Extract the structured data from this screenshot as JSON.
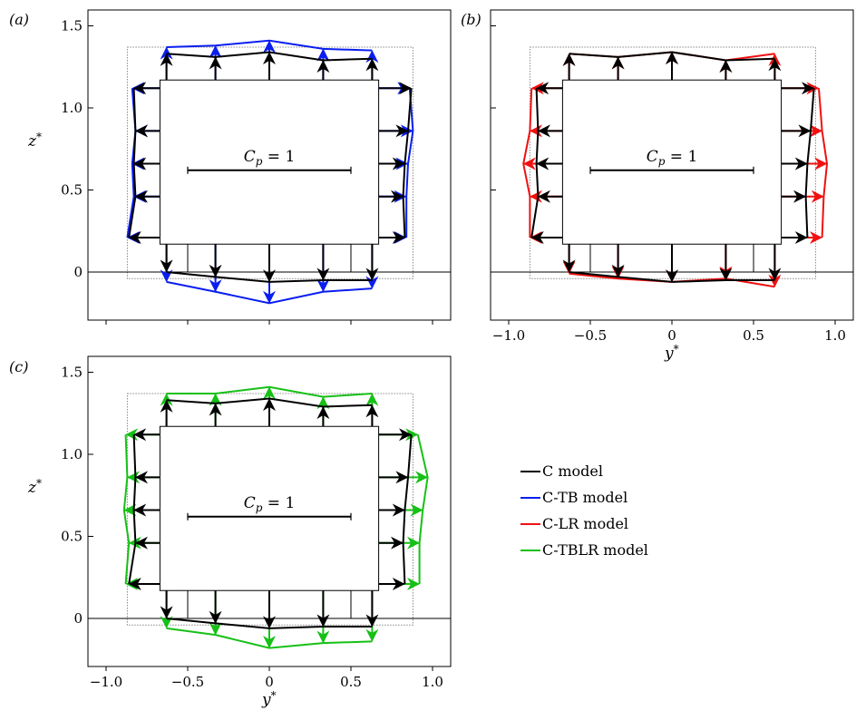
{
  "chart_data": {
    "type": "line",
    "description_panels": [
      "(a)",
      "(b)",
      "(c)"
    ],
    "shared": {
      "xlabel": "y*",
      "ylabel": "z*",
      "xlim": [
        -1.0,
        1.05
      ],
      "ylim": [
        -0.3,
        1.55
      ],
      "xticks": [
        -1.0,
        -0.5,
        0,
        0.5,
        1.0
      ],
      "xtick_labels": [
        "−1.0",
        "−0.5",
        "0",
        "0.5",
        "1.0"
      ],
      "yticks": [
        0,
        0.5,
        1.0,
        1.5
      ],
      "ytick_labels": [
        "0",
        "0.5",
        "1.0",
        "1.5"
      ],
      "body": {
        "y_min": -0.67,
        "y_max": 0.67,
        "z_min": 0.17,
        "z_max": 1.17
      },
      "scale_bar": {
        "label": "Cp = 1",
        "label_main": "C",
        "label_sub": "p",
        "label_rest": " = 1",
        "y_from": -0.5,
        "y_to": 0.5,
        "z": 0.62
      },
      "ground_z": 0,
      "dotted_box": {
        "y_min": -0.87,
        "y_max": 0.88,
        "z_min": -0.04,
        "z_max": 1.37
      },
      "top_y": [
        -0.63,
        -0.33,
        0.0,
        0.33,
        0.63
      ],
      "bottom_y": [
        -0.63,
        -0.33,
        0.0,
        0.33,
        0.63
      ],
      "side_z": [
        0.21,
        0.46,
        0.66,
        0.86,
        1.12
      ],
      "bottom_stub_y": [
        -0.5,
        -0.33,
        0.33,
        0.5
      ]
    },
    "series": [
      {
        "name": "C model",
        "color": "#000000",
        "top": [
          1.33,
          1.31,
          1.34,
          1.29,
          1.3
        ],
        "bottom": [
          0.0,
          -0.03,
          -0.06,
          -0.05,
          -0.05
        ],
        "left": [
          -0.86,
          -0.82,
          -0.83,
          -0.82,
          -0.83
        ],
        "right": [
          0.83,
          0.82,
          0.83,
          0.85,
          0.87
        ]
      },
      {
        "name": "C-TB model",
        "color": "#0a1ef0",
        "top": [
          1.37,
          1.38,
          1.41,
          1.36,
          1.35
        ],
        "bottom": [
          -0.06,
          -0.12,
          -0.19,
          -0.12,
          -0.1
        ],
        "left": [
          -0.87,
          -0.83,
          -0.84,
          -0.82,
          -0.84
        ],
        "right": [
          0.84,
          0.84,
          0.85,
          0.88,
          0.86
        ]
      },
      {
        "name": "C-LR model",
        "color": "#f01010",
        "top": [
          1.33,
          1.31,
          1.34,
          1.29,
          1.33
        ],
        "bottom": [
          -0.01,
          -0.04,
          -0.06,
          -0.04,
          -0.09
        ],
        "left": [
          -0.87,
          -0.87,
          -0.91,
          -0.87,
          -0.86
        ],
        "right": [
          0.92,
          0.93,
          0.95,
          0.92,
          0.9
        ]
      },
      {
        "name": "C-TBLR model",
        "color": "#16c016",
        "top": [
          1.37,
          1.37,
          1.41,
          1.35,
          1.37
        ],
        "bottom": [
          -0.06,
          -0.1,
          -0.18,
          -0.15,
          -0.14
        ],
        "left": [
          -0.88,
          -0.86,
          -0.89,
          -0.87,
          -0.88
        ],
        "right": [
          0.92,
          0.92,
          0.94,
          0.97,
          0.91
        ]
      }
    ],
    "panels": [
      {
        "label": "(a)",
        "series_overlay": [
          "C model",
          "C-TB model"
        ],
        "show_xticklabels": false,
        "show_yticklabels": true,
        "show_xlabel": false,
        "show_ylabel": true
      },
      {
        "label": "(b)",
        "series_overlay": [
          "C model",
          "C-LR model"
        ],
        "show_xticklabels": true,
        "show_yticklabels": false,
        "show_xlabel": true,
        "show_ylabel": false
      },
      {
        "label": "(c)",
        "series_overlay": [
          "C model",
          "C-TBLR model"
        ],
        "show_xticklabels": true,
        "show_yticklabels": true,
        "show_xlabel": true,
        "show_ylabel": true
      }
    ],
    "legend": {
      "placement": "right-of-panel-c",
      "entries": [
        "C model",
        "C-TB model",
        "C-LR model",
        "C-TBLR model"
      ]
    }
  }
}
